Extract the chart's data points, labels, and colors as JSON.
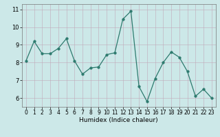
{
  "x": [
    0,
    1,
    2,
    3,
    4,
    5,
    6,
    7,
    8,
    9,
    10,
    11,
    12,
    13,
    14,
    15,
    16,
    17,
    18,
    19,
    20,
    21,
    22,
    23
  ],
  "y": [
    8.1,
    9.2,
    8.5,
    8.5,
    8.8,
    9.35,
    8.1,
    7.35,
    7.7,
    7.75,
    8.45,
    8.55,
    10.45,
    10.9,
    6.65,
    5.8,
    7.1,
    8.0,
    8.6,
    8.3,
    7.5,
    6.1,
    6.5,
    6.0
  ],
  "xlabel": "Humidex (Indice chaleur)",
  "ylim": [
    5.5,
    11.3
  ],
  "xlim": [
    -0.5,
    23.5
  ],
  "yticks": [
    6,
    7,
    8,
    9,
    10,
    11
  ],
  "xticks": [
    0,
    1,
    2,
    3,
    4,
    5,
    6,
    7,
    8,
    9,
    10,
    11,
    12,
    13,
    14,
    15,
    16,
    17,
    18,
    19,
    20,
    21,
    22,
    23
  ],
  "line_color": "#2d7a6e",
  "marker_size": 2.5,
  "bg_color": "#cce8e8",
  "grid_color": "#c0a8b8",
  "axes_bg": "#cce8e8",
  "tick_fontsize": 5.5,
  "xlabel_fontsize": 6.5
}
